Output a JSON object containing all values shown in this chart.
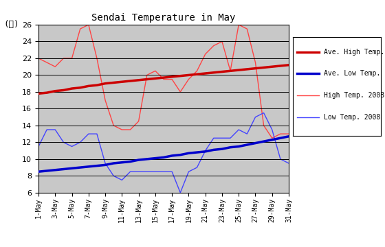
{
  "title": "Sendai Temperature in May",
  "top_label": "(℃)",
  "background_color": "#c8c8c8",
  "plot_bg_color": "#c8c8c8",
  "fig_bg_color": "#ffffff",
  "ylim": [
    6,
    26
  ],
  "yticks": [
    6,
    8,
    10,
    12,
    14,
    16,
    18,
    20,
    22,
    24,
    26
  ],
  "days": [
    1,
    2,
    3,
    4,
    5,
    6,
    7,
    8,
    9,
    10,
    11,
    12,
    13,
    14,
    15,
    16,
    17,
    18,
    19,
    20,
    21,
    22,
    23,
    24,
    25,
    26,
    27,
    28,
    29,
    30,
    31
  ],
  "ave_high": [
    17.8,
    17.9,
    18.1,
    18.2,
    18.4,
    18.5,
    18.7,
    18.8,
    19.0,
    19.1,
    19.2,
    19.3,
    19.4,
    19.5,
    19.6,
    19.7,
    19.8,
    19.9,
    20.0,
    20.1,
    20.2,
    20.3,
    20.4,
    20.5,
    20.6,
    20.7,
    20.8,
    20.9,
    21.0,
    21.1,
    21.2
  ],
  "ave_low": [
    8.5,
    8.6,
    8.7,
    8.8,
    8.9,
    9.0,
    9.1,
    9.2,
    9.3,
    9.5,
    9.6,
    9.7,
    9.9,
    10.0,
    10.1,
    10.2,
    10.4,
    10.5,
    10.7,
    10.8,
    10.9,
    11.1,
    11.2,
    11.4,
    11.5,
    11.7,
    11.9,
    12.1,
    12.3,
    12.5,
    12.7
  ],
  "high_2008": [
    22.0,
    21.5,
    21.0,
    22.0,
    22.0,
    25.5,
    26.0,
    22.0,
    17.0,
    14.0,
    13.5,
    13.5,
    14.5,
    20.0,
    20.5,
    19.5,
    19.5,
    18.0,
    19.5,
    20.5,
    22.5,
    23.5,
    24.0,
    20.5,
    26.0,
    25.5,
    21.5,
    14.0,
    12.5,
    13.0,
    13.0
  ],
  "low_2008": [
    11.5,
    13.5,
    13.5,
    12.0,
    11.5,
    12.0,
    13.0,
    13.0,
    9.5,
    8.0,
    7.5,
    8.5,
    8.5,
    8.5,
    8.5,
    8.5,
    8.5,
    6.0,
    8.5,
    9.0,
    11.0,
    12.5,
    12.5,
    12.5,
    13.5,
    13.0,
    15.0,
    15.5,
    13.5,
    10.0,
    9.5
  ],
  "ave_high_color": "#cc0000",
  "ave_low_color": "#0000cc",
  "high_2008_color": "#ff4444",
  "low_2008_color": "#4444ff",
  "ave_high_lw": 2.5,
  "ave_low_lw": 2.5,
  "data_2008_lw": 1.0,
  "grid_color": "#000000",
  "legend_labels": [
    "Ave. High Temp.",
    "Ave. Low Temp.",
    "High Temp. 2008",
    "Low Temp. 2008"
  ]
}
